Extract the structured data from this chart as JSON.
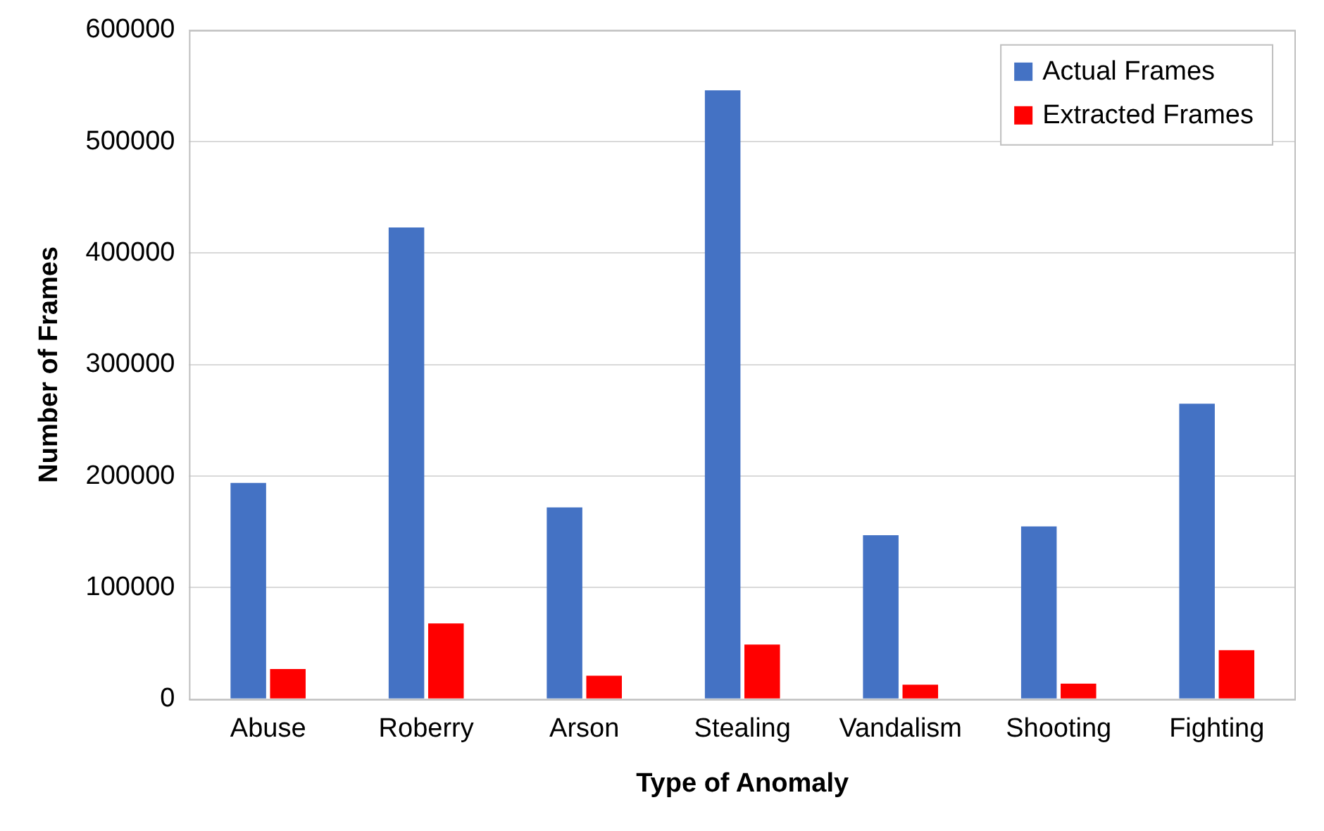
{
  "chart_data": {
    "type": "bar",
    "xlabel": "Type of Anomaly",
    "ylabel": "Number of Frames",
    "categories": [
      "Abuse",
      "Roberry",
      "Arson",
      "Stealing",
      "Vandalism",
      "Shooting",
      "Fighting"
    ],
    "series": [
      {
        "name": "Actual Frames",
        "color": "#4472c4",
        "values": [
          194000,
          423000,
          172000,
          546000,
          147000,
          155000,
          265000
        ]
      },
      {
        "name": "Extracted Frames",
        "color": "#ff0000",
        "values": [
          27000,
          68000,
          21000,
          49000,
          13000,
          14000,
          44000
        ]
      }
    ],
    "ylim": [
      0,
      600000
    ],
    "yticks": [
      0,
      100000,
      200000,
      300000,
      400000,
      500000,
      600000
    ],
    "grid": "y",
    "legend": "top right"
  }
}
